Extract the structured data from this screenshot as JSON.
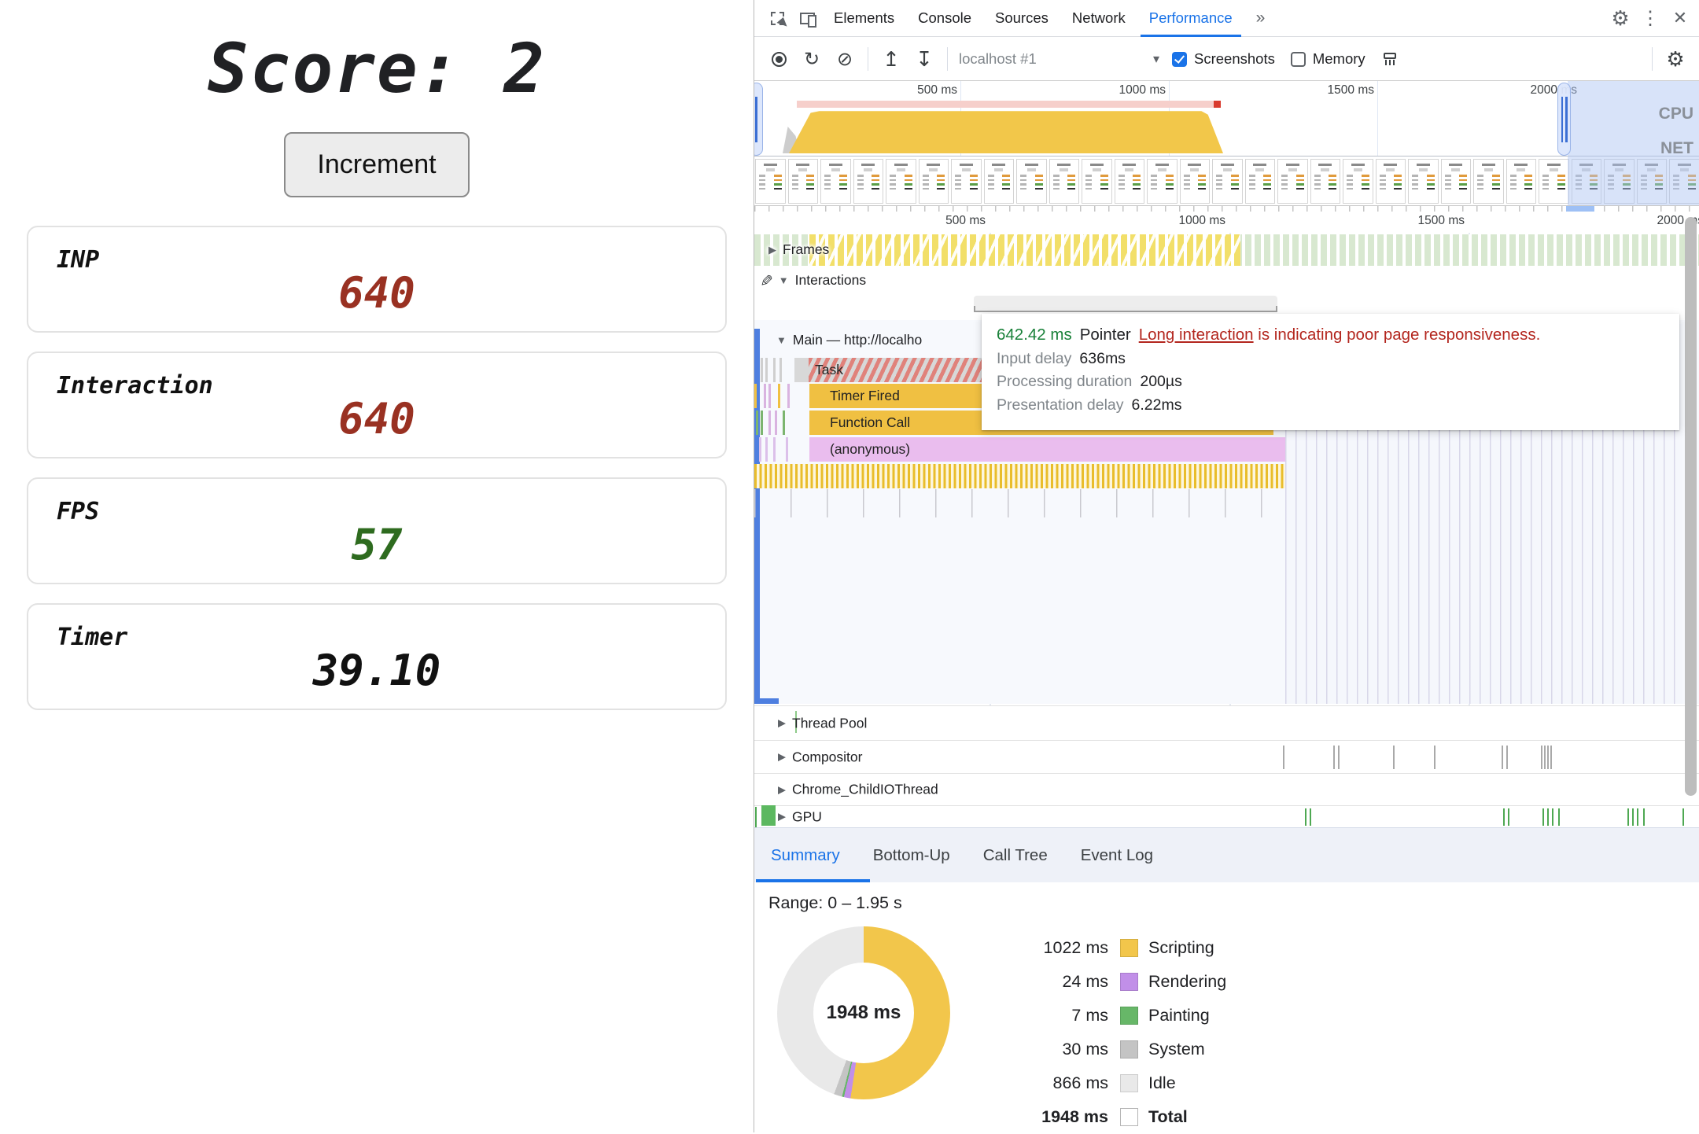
{
  "app": {
    "score_label": "Score: 2",
    "increment_button": "Increment",
    "cards": [
      {
        "label": "INP",
        "value": "640",
        "color": "#993122"
      },
      {
        "label": "Interaction",
        "value": "640",
        "color": "#993122"
      },
      {
        "label": "FPS",
        "value": "57",
        "color": "#2e6b1f"
      },
      {
        "label": "Timer",
        "value": "39.10",
        "color": "#111111"
      }
    ]
  },
  "devtools": {
    "tabbar": {
      "tabs": [
        "Elements",
        "Console",
        "Sources",
        "Network",
        "Performance"
      ],
      "active_tab": "Performance",
      "overflow": "»"
    },
    "icons": {
      "gear": "⚙",
      "kebab": "⋮",
      "close": "✕",
      "reload": "↻",
      "clear": "⊘",
      "upload": "↥",
      "download": "↧",
      "caret": "▾",
      "pencil": "✎",
      "tri_right": "▶",
      "tri_down": "▼"
    },
    "toolbar": {
      "session": "localhost #1",
      "screenshots_label": "Screenshots",
      "screenshots_checked": true,
      "memory_label": "Memory",
      "memory_checked": false
    },
    "overview": {
      "ticks": [
        "500 ms",
        "1000 ms",
        "1500 ms",
        "2000 ms"
      ],
      "lanes": [
        "CPU",
        "NET"
      ]
    },
    "flame": {
      "ticks": [
        "500 ms",
        "1000 ms",
        "1500 ms",
        "2000 ms"
      ],
      "tracks": {
        "frames": "Frames",
        "interactions": "Interactions",
        "main": "Main — http://localho"
      },
      "events": [
        "Task",
        "Timer Fired",
        "Function Call",
        "(anonymous)"
      ],
      "threads": [
        "Thread Pool",
        "Compositor",
        "Chrome_ChildIOThread",
        "GPU"
      ],
      "tooltip": {
        "duration": "642.42 ms",
        "event_type": "Pointer",
        "link_text": "Long interaction",
        "message": " is indicating poor page responsiveness.",
        "rows": [
          {
            "label": "Input delay",
            "value": "636ms"
          },
          {
            "label": "Processing duration",
            "value": "200µs"
          },
          {
            "label": "Presentation delay",
            "value": "6.22ms"
          }
        ]
      }
    },
    "drawer": {
      "tabs": [
        "Summary",
        "Bottom-Up",
        "Call Tree",
        "Event Log"
      ],
      "active_tab": "Summary"
    }
  },
  "chart_data": {
    "type": "pie",
    "title": "Performance summary donut",
    "range_label": "Range: 0 – 1.95 s",
    "total_label": "1948 ms",
    "legend_position": "right",
    "slices": [
      {
        "label": "Scripting",
        "value_ms": 1022,
        "display": "1022 ms",
        "color": "#f2c64b"
      },
      {
        "label": "Rendering",
        "value_ms": 24,
        "display": "24 ms",
        "color": "#c18fe8"
      },
      {
        "label": "Painting",
        "value_ms": 7,
        "display": "7 ms",
        "color": "#67b768"
      },
      {
        "label": "System",
        "value_ms": 30,
        "display": "30 ms",
        "color": "#c4c4c4"
      },
      {
        "label": "Idle",
        "value_ms": 866,
        "display": "866 ms",
        "color": "#e9e9e9"
      }
    ],
    "total": {
      "label": "Total",
      "value_ms": 1948,
      "display": "1948 ms"
    }
  }
}
